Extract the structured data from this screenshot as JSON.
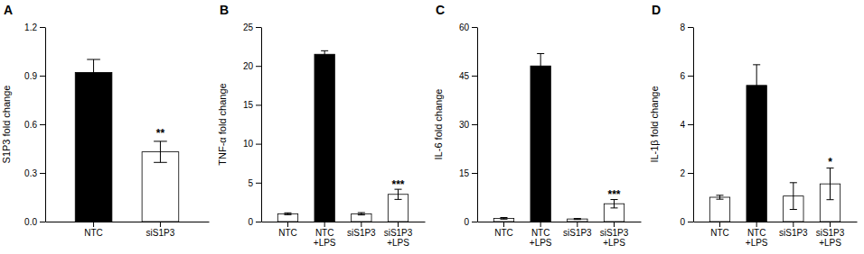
{
  "chart_data": [
    {
      "type": "bar",
      "title": "A",
      "ylabel": "S1P3 fold change",
      "ylim": [
        0,
        1.2
      ],
      "yticks": [
        {
          "value": 0.0,
          "label": "0.0"
        },
        0.3,
        0.6,
        0.9,
        1.2
      ],
      "categories": [
        "NTC",
        "siS1P3"
      ],
      "values": [
        0.92,
        0.43
      ],
      "errors": [
        0.08,
        0.065
      ],
      "colors": [
        "black",
        "white"
      ],
      "annotations": [
        {
          "text": "**",
          "category": "siS1P3",
          "y": 0.52
        }
      ]
    },
    {
      "type": "bar",
      "title": "B",
      "ylabel": "TNF-α fold change",
      "ylim": [
        0,
        25
      ],
      "yticks": [
        0,
        5,
        10,
        15,
        20,
        25
      ],
      "categories": [
        "NTC",
        "NTC\n+LPS",
        "siS1P3",
        "siS1P3\n+LPS"
      ],
      "values": [
        1.0,
        21.5,
        1.0,
        3.5
      ],
      "errors": [
        0.12,
        0.45,
        0.15,
        0.65
      ],
      "colors": [
        "white",
        "black",
        "white",
        "white"
      ],
      "annotations": [
        {
          "text": "***",
          "category": "siS1P3\n+LPS",
          "y": 4.3
        }
      ]
    },
    {
      "type": "bar",
      "title": "C",
      "ylabel": "IL-6 fold change",
      "ylim": [
        0,
        60
      ],
      "yticks": [
        0,
        15,
        30,
        45,
        60
      ],
      "categories": [
        "NTC",
        "NTC\n+LPS",
        "siS1P3",
        "siS1P3\n+LPS"
      ],
      "values": [
        1.0,
        48.0,
        0.8,
        5.5
      ],
      "errors": [
        0.25,
        3.8,
        0.15,
        1.3
      ],
      "colors": [
        "white",
        "black",
        "white",
        "white"
      ],
      "annotations": [
        {
          "text": "***",
          "category": "siS1P3\n+LPS",
          "y": 7.2
        }
      ]
    },
    {
      "type": "bar",
      "title": "D",
      "ylabel": "IL-1β fold change",
      "ylim": [
        0,
        8
      ],
      "yticks": [
        0,
        2,
        4,
        6,
        8
      ],
      "categories": [
        "NTC",
        "NTC\n+LPS",
        "siS1P3",
        "siS1P3\n+LPS"
      ],
      "values": [
        1.0,
        5.6,
        1.05,
        1.55
      ],
      "errors": [
        0.08,
        0.85,
        0.55,
        0.65
      ],
      "colors": [
        "white",
        "black",
        "white",
        "white"
      ],
      "annotations": [
        {
          "text": "*",
          "category": "siS1P3\n+LPS",
          "y": 2.3
        }
      ]
    }
  ]
}
